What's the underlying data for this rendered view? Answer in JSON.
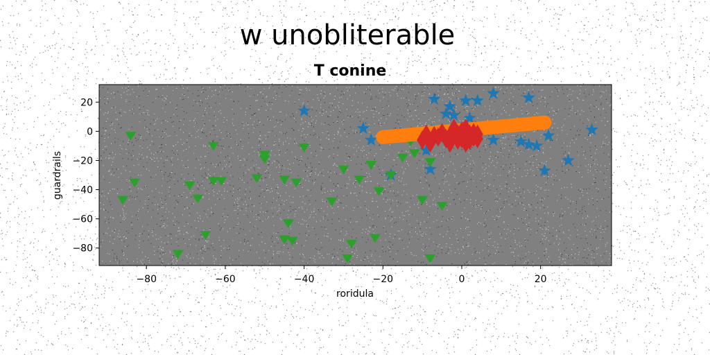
{
  "chart_data": {
    "type": "scatter",
    "suptitle": "w unobliterable",
    "title": "T conine",
    "xlabel": "roridula",
    "ylabel": "guardrails",
    "xlim": [
      -92,
      38
    ],
    "ylim": [
      -92,
      32
    ],
    "xticks": [
      -80,
      -60,
      -40,
      -20,
      0,
      20
    ],
    "yticks": [
      20,
      0,
      -20,
      -40,
      -60,
      -80
    ],
    "xtick_labels": [
      "−80",
      "−60",
      "−40",
      "−20",
      "0",
      "20"
    ],
    "ytick_labels": [
      "20",
      "0",
      "−20",
      "−40",
      "−60",
      "−80"
    ],
    "grid": false,
    "legend": "none",
    "background_color": "#808080",
    "series": [
      {
        "marker": "star",
        "color": "#1f77b4",
        "points": [
          [
            -40,
            14
          ],
          [
            -25,
            2
          ],
          [
            -23,
            -6
          ],
          [
            -7,
            22
          ],
          [
            -4,
            12
          ],
          [
            -3,
            17
          ],
          [
            -2,
            11
          ],
          [
            1,
            21
          ],
          [
            2,
            9
          ],
          [
            4,
            21
          ],
          [
            8,
            26
          ],
          [
            8,
            -6
          ],
          [
            15,
            -7
          ],
          [
            17,
            23
          ],
          [
            17,
            -9
          ],
          [
            19,
            -10
          ],
          [
            21,
            -27
          ],
          [
            22,
            -3
          ],
          [
            27,
            -20
          ],
          [
            33,
            1
          ],
          [
            -8,
            -26
          ],
          [
            -18,
            -30
          ],
          [
            -9,
            -13
          ],
          [
            0,
            -5
          ],
          [
            -1,
            -1
          ]
        ]
      },
      {
        "marker": "triangle_down",
        "color": "#2ca02c",
        "points": [
          [
            -84,
            -3
          ],
          [
            -86,
            -47
          ],
          [
            -83,
            -35
          ],
          [
            -72,
            -84
          ],
          [
            -69,
            -37
          ],
          [
            -67,
            -46
          ],
          [
            -65,
            -71
          ],
          [
            -63,
            -10
          ],
          [
            -63,
            -34
          ],
          [
            -61,
            -34
          ],
          [
            -52,
            -32
          ],
          [
            -50,
            -16
          ],
          [
            -50,
            -19
          ],
          [
            -45,
            -33
          ],
          [
            -45,
            -74
          ],
          [
            -44,
            -63
          ],
          [
            -43,
            -75
          ],
          [
            -42,
            -35
          ],
          [
            -40,
            -11
          ],
          [
            -33,
            -48
          ],
          [
            -30,
            -26
          ],
          [
            -29,
            -87
          ],
          [
            -28,
            -77
          ],
          [
            -26,
            -33
          ],
          [
            -23,
            -23
          ],
          [
            -22,
            -73
          ],
          [
            -21,
            -41
          ],
          [
            -18,
            -30
          ],
          [
            -15,
            -18
          ],
          [
            -13,
            -7
          ],
          [
            -12,
            -15
          ],
          [
            -10,
            -47
          ],
          [
            -8,
            -21
          ],
          [
            -8,
            -87
          ],
          [
            -5,
            -51
          ]
        ]
      },
      {
        "marker": "line",
        "color": "#ff7f0e",
        "line_width": 20,
        "points": [
          [
            -20,
            -4
          ],
          [
            21,
            6
          ]
        ]
      },
      {
        "marker": "diamond",
        "color": "#d62728",
        "points": [
          [
            -10,
            -6
          ],
          [
            -9,
            -2
          ],
          [
            -8,
            -8
          ],
          [
            -7,
            -3
          ],
          [
            -6,
            -4
          ],
          [
            -5,
            -1
          ],
          [
            -4,
            -5
          ],
          [
            -3,
            -3
          ],
          [
            -3,
            -8
          ],
          [
            -2,
            -1
          ],
          [
            -2,
            2
          ],
          [
            -1,
            -6
          ],
          [
            -1,
            -2
          ],
          [
            0,
            0
          ],
          [
            0,
            -5
          ],
          [
            1,
            -3
          ],
          [
            1,
            2
          ],
          [
            1,
            -8
          ],
          [
            2,
            -2
          ],
          [
            2,
            -6
          ],
          [
            3,
            -1
          ],
          [
            3,
            -4
          ],
          [
            4,
            -5
          ],
          [
            4,
            -2
          ]
        ]
      }
    ]
  }
}
